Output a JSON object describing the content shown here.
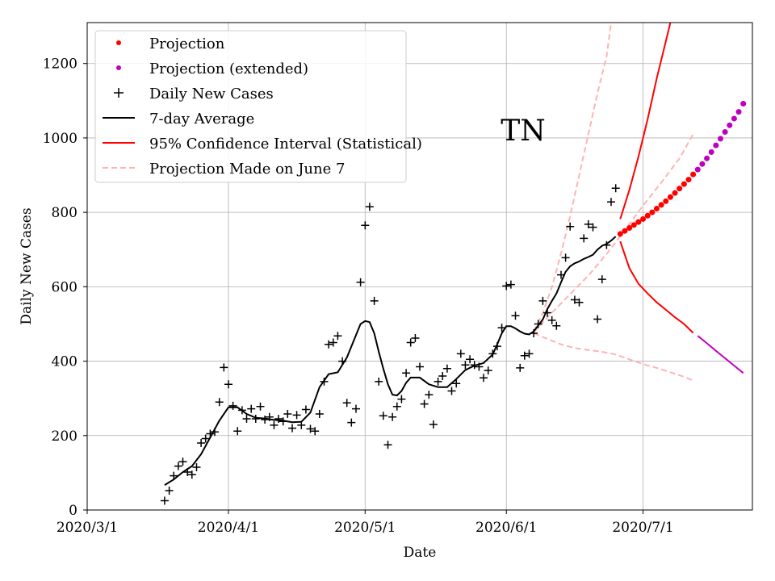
{
  "chart_data": {
    "type": "line",
    "title": "TN",
    "xlabel": "Date",
    "ylabel": "Daily New Cases",
    "ylim": [
      0,
      1310
    ],
    "xlim_days": [
      0,
      146
    ],
    "x_origin_date": "2020-03-01",
    "grid": true,
    "legend_position": "top-left",
    "x_ticks": [
      {
        "day": 0,
        "label": "2020/3/1"
      },
      {
        "day": 31,
        "label": "2020/4/1"
      },
      {
        "day": 61,
        "label": "2020/5/1"
      },
      {
        "day": 92,
        "label": "2020/6/1"
      },
      {
        "day": 122,
        "label": "2020/7/1"
      }
    ],
    "y_ticks": [
      {
        "value": 0,
        "label": "0"
      },
      {
        "value": 200,
        "label": "200"
      },
      {
        "value": 400,
        "label": "400"
      },
      {
        "value": 600,
        "label": "600"
      },
      {
        "value": 800,
        "label": "800"
      },
      {
        "value": 1000,
        "label": "1000"
      },
      {
        "value": 1200,
        "label": "1200"
      }
    ],
    "colors": {
      "projection": "#ff0000",
      "projection_extended": "#bf00bf",
      "cases": "#000000",
      "average": "#000000",
      "ci": "#ff0000",
      "ci_extended": "#bf00bf",
      "june7": "#ffb3b3"
    },
    "legend": [
      {
        "key": "projection",
        "label": "Projection"
      },
      {
        "key": "projection_extended",
        "label": "Projection (extended)"
      },
      {
        "key": "cases",
        "label": "Daily New Cases"
      },
      {
        "key": "average",
        "label": "7-day Average"
      },
      {
        "key": "ci",
        "label": "95% Confidence Interval (Statistical)"
      },
      {
        "key": "june7",
        "label": "Projection Made on June 7"
      }
    ],
    "series": [
      {
        "name": "Daily New Cases",
        "type": "scatter",
        "points": [
          [
            17,
            25
          ],
          [
            18,
            52
          ],
          [
            19,
            92
          ],
          [
            20,
            118
          ],
          [
            21,
            130
          ],
          [
            22,
            102
          ],
          [
            23,
            95
          ],
          [
            24,
            115
          ],
          [
            25,
            180
          ],
          [
            26,
            192
          ],
          [
            27,
            205
          ],
          [
            28,
            210
          ],
          [
            29,
            290
          ],
          [
            30,
            383
          ],
          [
            31,
            338
          ],
          [
            32,
            280
          ],
          [
            33,
            212
          ],
          [
            34,
            268
          ],
          [
            35,
            245
          ],
          [
            36,
            272
          ],
          [
            37,
            245
          ],
          [
            38,
            278
          ],
          [
            39,
            243
          ],
          [
            40,
            250
          ],
          [
            41,
            228
          ],
          [
            42,
            245
          ],
          [
            43,
            238
          ],
          [
            44,
            258
          ],
          [
            45,
            220
          ],
          [
            46,
            255
          ],
          [
            47,
            228
          ],
          [
            48,
            270
          ],
          [
            49,
            218
          ],
          [
            50,
            212
          ],
          [
            51,
            258
          ],
          [
            52,
            345
          ],
          [
            53,
            445
          ],
          [
            54,
            450
          ],
          [
            55,
            468
          ],
          [
            56,
            400
          ],
          [
            57,
            288
          ],
          [
            58,
            235
          ],
          [
            59,
            272
          ],
          [
            60,
            612
          ],
          [
            61,
            765
          ],
          [
            62,
            815
          ],
          [
            63,
            562
          ],
          [
            64,
            345
          ],
          [
            65,
            253
          ],
          [
            66,
            175
          ],
          [
            67,
            250
          ],
          [
            68,
            278
          ],
          [
            69,
            298
          ],
          [
            70,
            368
          ],
          [
            71,
            450
          ],
          [
            72,
            462
          ],
          [
            73,
            385
          ],
          [
            74,
            285
          ],
          [
            75,
            310
          ],
          [
            76,
            230
          ],
          [
            77,
            345
          ],
          [
            78,
            360
          ],
          [
            79,
            380
          ],
          [
            80,
            320
          ],
          [
            81,
            340
          ],
          [
            82,
            420
          ],
          [
            83,
            390
          ],
          [
            84,
            405
          ],
          [
            85,
            390
          ],
          [
            86,
            385
          ],
          [
            87,
            355
          ],
          [
            88,
            375
          ],
          [
            89,
            420
          ],
          [
            90,
            440
          ],
          [
            91,
            490
          ],
          [
            92,
            602
          ],
          [
            93,
            606
          ],
          [
            94,
            522
          ],
          [
            95,
            382
          ],
          [
            96,
            415
          ],
          [
            97,
            420
          ],
          [
            98,
            475
          ],
          [
            99,
            500
          ],
          [
            100,
            562
          ],
          [
            101,
            530
          ],
          [
            102,
            510
          ],
          [
            103,
            495
          ],
          [
            104,
            632
          ],
          [
            105,
            678
          ],
          [
            106,
            762
          ],
          [
            107,
            565
          ],
          [
            108,
            558
          ],
          [
            109,
            730
          ],
          [
            110,
            768
          ],
          [
            111,
            760
          ],
          [
            112,
            513
          ],
          [
            113,
            620
          ],
          [
            114,
            712
          ],
          [
            115,
            828
          ],
          [
            116,
            865
          ]
        ]
      },
      {
        "name": "7-day Average",
        "type": "line",
        "points": [
          [
            17,
            67
          ],
          [
            19,
            82
          ],
          [
            21,
            102
          ],
          [
            23,
            118
          ],
          [
            25,
            150
          ],
          [
            27,
            195
          ],
          [
            29,
            240
          ],
          [
            31,
            276
          ],
          [
            33,
            276
          ],
          [
            35,
            258
          ],
          [
            37,
            248
          ],
          [
            39,
            246
          ],
          [
            41,
            242
          ],
          [
            43,
            240
          ],
          [
            45,
            236
          ],
          [
            47,
            237
          ],
          [
            49,
            262
          ],
          [
            51,
            330
          ],
          [
            53,
            365
          ],
          [
            55,
            370
          ],
          [
            57,
            410
          ],
          [
            59,
            470
          ],
          [
            60,
            500
          ],
          [
            61,
            508
          ],
          [
            62,
            505
          ],
          [
            63,
            475
          ],
          [
            64,
            425
          ],
          [
            65,
            380
          ],
          [
            66,
            338
          ],
          [
            67,
            310
          ],
          [
            68,
            308
          ],
          [
            69,
            320
          ],
          [
            70,
            342
          ],
          [
            71,
            356
          ],
          [
            73,
            356
          ],
          [
            75,
            338
          ],
          [
            77,
            330
          ],
          [
            79,
            330
          ],
          [
            81,
            352
          ],
          [
            83,
            376
          ],
          [
            85,
            388
          ],
          [
            87,
            395
          ],
          [
            89,
            418
          ],
          [
            90,
            445
          ],
          [
            91,
            475
          ],
          [
            92,
            494
          ],
          [
            93,
            494
          ],
          [
            94,
            488
          ],
          [
            95,
            480
          ],
          [
            96,
            474
          ],
          [
            97,
            472
          ],
          [
            98,
            480
          ],
          [
            99,
            496
          ],
          [
            100,
            512
          ],
          [
            101,
            540
          ],
          [
            102,
            562
          ],
          [
            103,
            582
          ],
          [
            104,
            612
          ],
          [
            105,
            640
          ],
          [
            106,
            655
          ],
          [
            107,
            663
          ],
          [
            108,
            668
          ],
          [
            109,
            675
          ],
          [
            110,
            680
          ],
          [
            111,
            686
          ],
          [
            112,
            700
          ],
          [
            113,
            710
          ],
          [
            114,
            715
          ],
          [
            115,
            724
          ],
          [
            116,
            735
          ]
        ]
      },
      {
        "name": "Projection",
        "type": "scatter",
        "points": [
          [
            117,
            742
          ],
          [
            118,
            750
          ],
          [
            119,
            758
          ],
          [
            120,
            766
          ],
          [
            121,
            774
          ],
          [
            122,
            782
          ],
          [
            123,
            791
          ],
          [
            124,
            800
          ],
          [
            125,
            810
          ],
          [
            126,
            820
          ],
          [
            127,
            830
          ],
          [
            128,
            841
          ],
          [
            129,
            852
          ],
          [
            130,
            864
          ],
          [
            131,
            876
          ],
          [
            132,
            888
          ],
          [
            133,
            902
          ]
        ]
      },
      {
        "name": "Projection (extended)",
        "type": "scatter",
        "points": [
          [
            134,
            915
          ],
          [
            135,
            930
          ],
          [
            136,
            945
          ],
          [
            137,
            962
          ],
          [
            138,
            980
          ],
          [
            139,
            998
          ],
          [
            140,
            1016
          ],
          [
            141,
            1034
          ],
          [
            142,
            1052
          ],
          [
            143,
            1070
          ],
          [
            144,
            1092
          ]
        ]
      },
      {
        "name": "95% Confidence Interval (Statistical) upper",
        "type": "line",
        "points": [
          [
            117,
            782
          ],
          [
            119,
            860
          ],
          [
            121,
            950
          ],
          [
            123,
            1050
          ],
          [
            125,
            1160
          ],
          [
            127,
            1260
          ],
          [
            128,
            1310
          ]
        ]
      },
      {
        "name": "95% Confidence Interval (Statistical) lower",
        "type": "line",
        "points": [
          [
            117,
            722
          ],
          [
            119,
            650
          ],
          [
            121,
            608
          ],
          [
            123,
            582
          ],
          [
            125,
            558
          ],
          [
            127,
            538
          ],
          [
            129,
            518
          ],
          [
            131,
            500
          ],
          [
            133,
            476
          ]
        ]
      },
      {
        "name": "95% CI lower (extended)",
        "type": "line",
        "points": [
          [
            134,
            468
          ],
          [
            136,
            448
          ],
          [
            138,
            428
          ],
          [
            140,
            408
          ],
          [
            142,
            388
          ],
          [
            144,
            368
          ]
        ]
      },
      {
        "name": "Projection Made on June 7 upper",
        "type": "line",
        "points": [
          [
            98,
            480
          ],
          [
            100,
            530
          ],
          [
            102,
            600
          ],
          [
            104,
            690
          ],
          [
            106,
            790
          ],
          [
            108,
            900
          ],
          [
            110,
            1010
          ],
          [
            112,
            1120
          ],
          [
            114,
            1220
          ],
          [
            115,
            1310
          ]
        ]
      },
      {
        "name": "Projection Made on June 7 middle",
        "type": "line",
        "points": [
          [
            98,
            478
          ],
          [
            102,
            530
          ],
          [
            106,
            580
          ],
          [
            110,
            630
          ],
          [
            114,
            688
          ],
          [
            118,
            752
          ],
          [
            122,
            818
          ],
          [
            126,
            880
          ],
          [
            130,
            945
          ],
          [
            133,
            1010
          ]
        ]
      },
      {
        "name": "Projection Made on June 7 lower",
        "type": "line",
        "points": [
          [
            98,
            475
          ],
          [
            101,
            460
          ],
          [
            104,
            445
          ],
          [
            107,
            435
          ],
          [
            110,
            430
          ],
          [
            113,
            425
          ],
          [
            116,
            418
          ],
          [
            119,
            405
          ],
          [
            122,
            392
          ],
          [
            125,
            382
          ],
          [
            128,
            370
          ],
          [
            131,
            358
          ],
          [
            133,
            348
          ]
        ]
      }
    ]
  }
}
